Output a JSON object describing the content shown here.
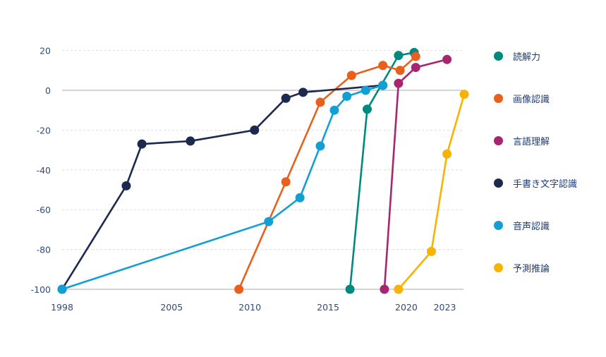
{
  "chart_data": {
    "type": "line",
    "title": "",
    "xlabel": "",
    "ylabel": "",
    "xlim": [
      1998,
      2024
    ],
    "ylim": [
      -100,
      20
    ],
    "grid": true,
    "legend_position": "right",
    "x_ticks": [
      {
        "value": 1998,
        "label": "1998"
      },
      {
        "value": 2005,
        "label": "2005"
      },
      {
        "value": 2010,
        "label": "2010"
      },
      {
        "value": 2015,
        "label": "2015"
      },
      {
        "value": 2020,
        "label": "2020"
      },
      {
        "value": 2023,
        "label": "2023"
      }
    ],
    "y_ticks": [
      20,
      0,
      -20,
      -40,
      -60,
      -80,
      -100
    ],
    "series": [
      {
        "name": "読解力",
        "color": "#00897f",
        "points": [
          [
            2016.4,
            -100
          ],
          [
            2017.5,
            -9.5
          ],
          [
            2019.5,
            17.5
          ],
          [
            2020.5,
            19
          ]
        ]
      },
      {
        "name": "画像認識",
        "color": "#e8601c",
        "points": [
          [
            2009.3,
            -100
          ],
          [
            2012.3,
            -46
          ],
          [
            2014.5,
            -6
          ],
          [
            2016.5,
            7.5
          ],
          [
            2018.5,
            12.5
          ],
          [
            2019.6,
            10
          ],
          [
            2020.6,
            17
          ]
        ]
      },
      {
        "name": "言語理解",
        "color": "#a62672",
        "points": [
          [
            2018.6,
            -100
          ],
          [
            2019.5,
            3.5
          ],
          [
            2020.6,
            11.5
          ],
          [
            2022.6,
            15.5
          ]
        ]
      },
      {
        "name": "手書き文字認識",
        "color": "#1b2a4e",
        "points": [
          [
            1998,
            -100
          ],
          [
            2002.1,
            -48
          ],
          [
            2003.1,
            -27
          ],
          [
            2006.2,
            -25.5
          ],
          [
            2010.3,
            -20
          ],
          [
            2012.3,
            -4
          ],
          [
            2013.4,
            -1
          ],
          [
            2018.5,
            2.5
          ]
        ]
      },
      {
        "name": "音声認識",
        "color": "#129fd4",
        "points": [
          [
            1998,
            -100
          ],
          [
            2011.2,
            -66
          ],
          [
            2013.2,
            -54
          ],
          [
            2014.5,
            -28
          ],
          [
            2015.4,
            -10
          ],
          [
            2016.2,
            -3
          ],
          [
            2017.4,
            0
          ],
          [
            2018.5,
            2.5
          ]
        ]
      },
      {
        "name": "予測推論",
        "color": "#f8b300",
        "points": [
          [
            2019.5,
            -100
          ],
          [
            2021.6,
            -81
          ],
          [
            2022.6,
            -32
          ],
          [
            2023.7,
            -2
          ]
        ]
      }
    ]
  }
}
